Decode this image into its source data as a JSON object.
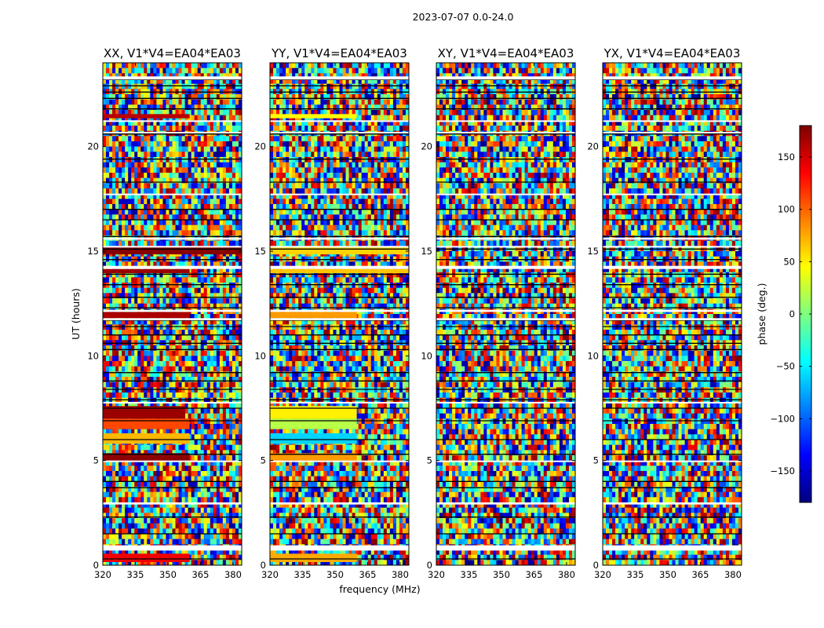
{
  "chart_data": {
    "type": "heatmap",
    "title": "2023-07-07 0.0-24.0",
    "xlabel": "frequency (MHz)",
    "ylabel": "UT (hours)",
    "xlim": [
      320,
      384
    ],
    "ylim": [
      0,
      24
    ],
    "x_ticks": [
      320,
      335,
      350,
      365,
      380
    ],
    "y_ticks": [
      0,
      5,
      10,
      15,
      20
    ],
    "colorbar": {
      "label": "phase (deg.)",
      "range": [
        -180,
        180
      ],
      "ticks": [
        150,
        100,
        50,
        0,
        -50,
        -100,
        -150
      ],
      "tick_labels": [
        "150",
        "100",
        "50",
        "0",
        "−50",
        "−100",
        "−150"
      ],
      "colormap": "jet",
      "colors": [
        "#00007f",
        "#0000ff",
        "#007fff",
        "#00ffff",
        "#7fff7f",
        "#ffff00",
        "#ff7f00",
        "#ff0000",
        "#7f0000"
      ]
    },
    "panels": [
      {
        "title": "XX, V1*V4=EA04*EA03",
        "coherent_bands": [
          {
            "ut": [
              0.15,
              0.55
            ],
            "freq": [
              320,
              360
            ],
            "phase": 140
          },
          {
            "ut": [
              5.0,
              5.35
            ],
            "freq": [
              320,
              360
            ],
            "phase": 175
          },
          {
            "ut": [
              5.8,
              6.3
            ],
            "freq": [
              320,
              360
            ],
            "phase": 70
          },
          {
            "ut": [
              6.5,
              7.0
            ],
            "freq": [
              320,
              360
            ],
            "phase": 110
          },
          {
            "ut": [
              7.0,
              7.6
            ],
            "freq": [
              320,
              358
            ],
            "phase": 170
          },
          {
            "ut": [
              11.8,
              12.1
            ],
            "freq": [
              320,
              360
            ],
            "phase": 165
          },
          {
            "ut": [
              13.95,
              14.15
            ],
            "freq": [
              320,
              360
            ],
            "phase": 170
          },
          {
            "ut": [
              14.85,
              15.2
            ],
            "freq": [
              320,
              384
            ],
            "phase": 178
          },
          {
            "ut": [
              21.35,
              21.55
            ],
            "freq": [
              320,
              360
            ],
            "phase": 160
          }
        ]
      },
      {
        "title": "YY, V1*V4=EA04*EA03",
        "coherent_bands": [
          {
            "ut": [
              0.15,
              0.55
            ],
            "freq": [
              320,
              360
            ],
            "phase": 75
          },
          {
            "ut": [
              5.0,
              5.35
            ],
            "freq": [
              320,
              360
            ],
            "phase": 80
          },
          {
            "ut": [
              5.8,
              6.3
            ],
            "freq": [
              320,
              360
            ],
            "phase": -60
          },
          {
            "ut": [
              6.5,
              7.0
            ],
            "freq": [
              320,
              360
            ],
            "phase": 20
          },
          {
            "ut": [
              7.0,
              7.6
            ],
            "freq": [
              320,
              360
            ],
            "phase": 50
          },
          {
            "ut": [
              11.8,
              12.1
            ],
            "freq": [
              320,
              360
            ],
            "phase": 80
          },
          {
            "ut": [
              13.95,
              14.15
            ],
            "freq": [
              320,
              384
            ],
            "phase": 65
          },
          {
            "ut": [
              14.85,
              15.2
            ],
            "freq": [
              320,
              384
            ],
            "phase": 60
          },
          {
            "ut": [
              21.35,
              21.55
            ],
            "freq": [
              320,
              360
            ],
            "phase": 45
          }
        ]
      },
      {
        "title": "XY, V1*V4=EA04*EA03",
        "coherent_bands": []
      },
      {
        "title": "YX, V1*V4=EA04*EA03",
        "coherent_bands": []
      }
    ],
    "flagged_ut_rows": [
      [
        0.7,
        0.95
      ],
      [
        2.9,
        3.0
      ],
      [
        4.95,
        5.0
      ],
      [
        7.75,
        7.8
      ],
      [
        11.7,
        11.8
      ],
      [
        12.1,
        12.2
      ],
      [
        14.15,
        14.3
      ],
      [
        15.2,
        15.25
      ],
      [
        15.55,
        15.65
      ],
      [
        17.7,
        17.75
      ],
      [
        20.65,
        20.7
      ],
      [
        21.2,
        21.25
      ],
      [
        23.2,
        23.35
      ]
    ],
    "black_ut_lines": [
      0.3,
      1.5,
      2.3,
      2.95,
      3.7,
      4.0,
      5.3,
      6.0,
      6.9,
      7.5,
      7.9,
      8.4,
      8.8,
      9.2,
      10.3,
      10.6,
      11.0,
      11.4,
      11.7,
      12.3,
      12.8,
      13.4,
      13.9,
      14.6,
      15.1,
      15.7,
      16.5,
      17.0,
      17.7,
      18.3,
      19.4,
      20.6,
      21.8,
      22.3,
      22.6,
      22.9,
      23.2
    ]
  }
}
